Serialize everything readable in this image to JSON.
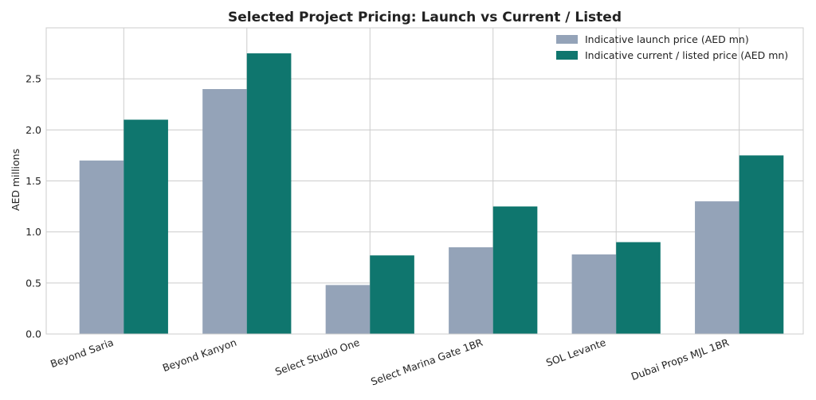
{
  "chart_data": {
    "type": "bar",
    "title": "Selected Project Pricing: Launch vs Current / Listed",
    "xlabel": "",
    "ylabel": "AED millions",
    "categories": [
      "Beyond Saria",
      "Beyond Kanyon",
      "Select Studio One",
      "Select Marina Gate 1BR",
      "SOL Levante",
      "Dubai Props MJL 1BR"
    ],
    "series": [
      {
        "name": "Indicative launch price (AED mn)",
        "color": "#94a3b8",
        "values": [
          1.7,
          2.4,
          0.48,
          0.85,
          0.78,
          1.3
        ]
      },
      {
        "name": "Indicative current / listed price (AED mn)",
        "color": "#0f766e",
        "values": [
          2.1,
          2.75,
          0.77,
          1.25,
          0.9,
          1.75
        ]
      }
    ],
    "ylim": [
      0,
      3.0
    ],
    "yticks": [
      "0.0",
      "0.5",
      "1.0",
      "1.5",
      "2.0",
      "2.5"
    ],
    "grid": true,
    "legend_position": "top-right"
  }
}
